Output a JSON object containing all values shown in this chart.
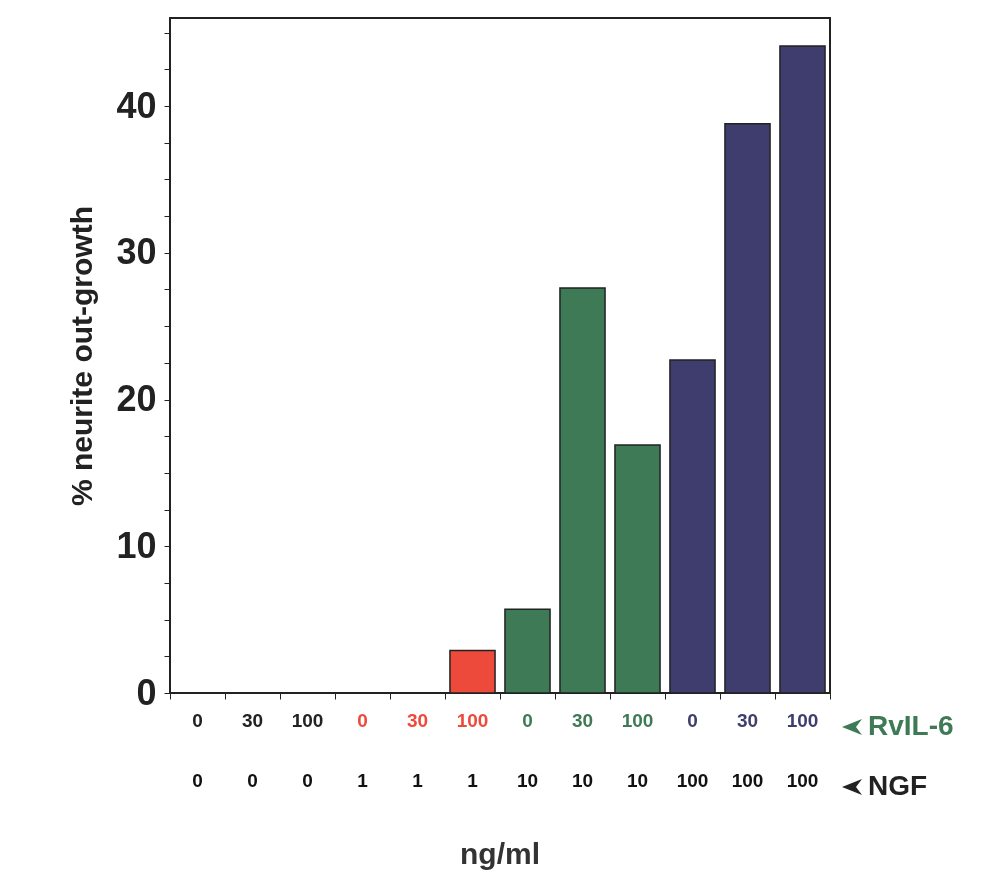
{
  "chart_data": {
    "type": "bar",
    "ylabel": "% neurite out-growth",
    "xlabel": "ng/ml",
    "categories": [
      "0",
      "30",
      "100",
      "0",
      "30",
      "100",
      "0",
      "30",
      "100",
      "0",
      "30",
      "100"
    ],
    "values": [
      0,
      0,
      0,
      0,
      0,
      2.9,
      5.7,
      27.6,
      16.9,
      22.7,
      38.8,
      44.1
    ],
    "colors": [
      "#222222",
      "#222222",
      "#222222",
      "#ee4a3c",
      "#ee4a3c",
      "#ee4a3c",
      "#3d7a55",
      "#3d7a55",
      "#3d7a55",
      "#3e3d6e",
      "#3e3d6e",
      "#3e3d6e"
    ],
    "ylim": [
      0,
      46
    ],
    "yticks": [
      0,
      {
        "value": 2.5,
        "label": null
      },
      {
        "value": 5,
        "label": null
      },
      {
        "value": 7.5,
        "label": null
      },
      10,
      {
        "value": 12.5,
        "label": null
      },
      {
        "value": 15,
        "label": null
      },
      {
        "value": 17.5,
        "label": null
      },
      20,
      {
        "value": 22.5,
        "label": null
      },
      {
        "value": 25,
        "label": null
      },
      {
        "value": 27.5,
        "label": null
      },
      30,
      {
        "value": 32.5,
        "label": null
      },
      {
        "value": 35,
        "label": null
      },
      {
        "value": 37.5,
        "label": null
      },
      40,
      {
        "value": 42.5,
        "label": null
      },
      {
        "value": 45,
        "label": null
      }
    ],
    "annotations": [
      "RvIL-6",
      "NGF",
      "0",
      "0",
      "0",
      "1",
      "1",
      "1",
      "10",
      "10",
      "10",
      "100",
      "100",
      "100"
    ]
  }
}
